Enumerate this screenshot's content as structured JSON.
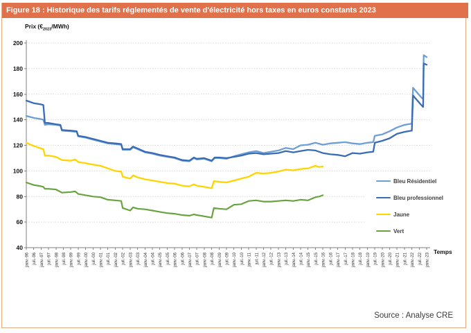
{
  "window": {
    "title": "Figure 18 : Historique des tarifs réglementés de vente d'électricité hors taxes en euros constants 2023"
  },
  "axis_labels": {
    "y_prefix": "Prix (€",
    "y_sub": "2023",
    "y_suffix": "/MWh)",
    "x": "Temps"
  },
  "source": "Source : Analyse CRE",
  "colors": {
    "title_bar": "#E0714B",
    "frame_border": "#E3A983",
    "grid": "#D8D8D8",
    "axis": "#7F7F7F",
    "bleu_residentiel": "#6D9ED6",
    "bleu_professionnel": "#3A6BB5",
    "jaune": "#FFD400",
    "vert": "#69A33F"
  },
  "legend": {
    "items": [
      {
        "label": "Bleu Résidentiel",
        "color": "#6D9ED6"
      },
      {
        "label": "Bleu professionnel",
        "color": "#3A6BB5"
      },
      {
        "label": "Jaune",
        "color": "#FFD400"
      },
      {
        "label": "Vert",
        "color": "#69A33F"
      }
    ]
  },
  "chart_data": {
    "type": "line",
    "title": "Historique des tarifs réglementés de vente d'électricité hors taxes en euros constants 2023",
    "ylabel": "Prix (€2023/MWh)",
    "xlabel": "Temps",
    "ylim": [
      40,
      200
    ],
    "ytick_step": 20,
    "x_range": [
      1996,
      2023
    ],
    "grid": "horizontal-dotted",
    "legend_position": "right-middle",
    "x_tick_labels": [
      "janv.-96",
      "juil.-96",
      "janv.-97",
      "juil.-97",
      "janv.-98",
      "juil.-98",
      "janv.-99",
      "juil.-99",
      "janv.-00",
      "juil.-00",
      "janv.-01",
      "juil.-01",
      "janv.-02",
      "juil.-02",
      "janv.-03",
      "juil.-03",
      "janv.-04",
      "juil.-04",
      "janv.-05",
      "juil.-05",
      "janv.-06",
      "juil.-06",
      "janv.-07",
      "juil.-07",
      "janv.-08",
      "juil.-08",
      "janv.-09",
      "juil.-09",
      "janv.-10",
      "juil.-10",
      "janv.-11",
      "juil.-11",
      "janv.-12",
      "juil.-12",
      "janv.-13",
      "juil.-13",
      "janv.-14",
      "juil.-14",
      "janv.-15",
      "juil.-15",
      "janv.-16",
      "juil.-16",
      "janv.-17",
      "juil.-17",
      "janv.-18",
      "juil.-18",
      "janv.-19",
      "juil.-19",
      "janv.-20",
      "juil.-20",
      "janv.-21",
      "juil.-21",
      "janv.-22",
      "juil.-22",
      "janv.-23"
    ],
    "series": [
      {
        "name": "Bleu Résidentiel",
        "color": "#6D9ED6",
        "width": 2.3,
        "x": [
          1996.0,
          1996.5,
          1997.0,
          1997.15,
          1997.25,
          1997.5,
          1998.0,
          1998.3,
          1998.4,
          1999.0,
          1999.4,
          1999.5,
          2000.0,
          2000.5,
          2001.0,
          2001.5,
          2002.0,
          2002.4,
          2002.5,
          2003.0,
          2003.2,
          2003.5,
          2004.0,
          2004.5,
          2005.0,
          2005.5,
          2006.0,
          2006.5,
          2007.0,
          2007.3,
          2007.5,
          2008.0,
          2008.5,
          2008.7,
          2009.0,
          2009.5,
          2010.0,
          2010.5,
          2011.0,
          2011.5,
          2012.0,
          2012.5,
          2013.0,
          2013.5,
          2014.0,
          2014.5,
          2015.0,
          2015.5,
          2016.0,
          2016.5,
          2017.0,
          2017.5,
          2018.0,
          2018.5,
          2019.0,
          2019.4,
          2019.5,
          2020.0,
          2020.5,
          2021.0,
          2021.5,
          2022.0,
          2022.08,
          2022.3,
          2022.6,
          2022.76,
          2022.8,
          2023.0
        ],
        "y": [
          143,
          141.5,
          140.5,
          140,
          136,
          136.5,
          136,
          135.5,
          131.5,
          131,
          130.5,
          127,
          126,
          124.5,
          123,
          121.5,
          121,
          120.5,
          116.5,
          116.5,
          118.5,
          117,
          114.5,
          113.5,
          112,
          111,
          110,
          108,
          107.5,
          110,
          109,
          109.5,
          107.5,
          110,
          110,
          109.5,
          111.5,
          113,
          114.5,
          115.5,
          114,
          115,
          116,
          118,
          117,
          120,
          120.5,
          122,
          120.5,
          121.5,
          122,
          122.5,
          121.5,
          121,
          122,
          122.5,
          127.5,
          128.5,
          131,
          134,
          136,
          137,
          165,
          162,
          158,
          156,
          190.5,
          189
        ]
      },
      {
        "name": "Bleu professionnel",
        "color": "#3A6BB5",
        "width": 2.3,
        "x": [
          1996.0,
          1996.5,
          1997.0,
          1997.15,
          1997.25,
          1997.5,
          1998.0,
          1998.3,
          1998.4,
          1999.0,
          1999.4,
          1999.5,
          2000.0,
          2000.5,
          2001.0,
          2001.5,
          2002.0,
          2002.4,
          2002.5,
          2003.0,
          2003.2,
          2003.5,
          2004.0,
          2004.5,
          2005.0,
          2005.5,
          2006.0,
          2006.5,
          2007.0,
          2007.3,
          2007.5,
          2008.0,
          2008.5,
          2008.7,
          2009.0,
          2009.5,
          2010.0,
          2010.5,
          2011.0,
          2011.5,
          2012.0,
          2012.5,
          2013.0,
          2013.5,
          2014.0,
          2014.5,
          2015.0,
          2015.5,
          2016.0,
          2016.5,
          2017.0,
          2017.5,
          2018.0,
          2018.5,
          2019.0,
          2019.4,
          2019.5,
          2020.0,
          2020.5,
          2021.0,
          2021.5,
          2022.0,
          2022.08,
          2022.3,
          2022.6,
          2022.76,
          2022.8,
          2023.0
        ],
        "y": [
          155,
          153,
          152,
          151.5,
          137.5,
          137.5,
          136.5,
          136,
          132,
          131.5,
          131,
          127.5,
          126.5,
          125,
          123.5,
          122,
          121.5,
          121,
          117,
          117,
          119,
          117.5,
          115,
          114,
          112.5,
          111.5,
          110.5,
          108.5,
          108,
          110.5,
          109.5,
          110,
          108,
          110.5,
          110.5,
          110,
          111,
          112,
          113.5,
          114,
          113,
          113.5,
          114,
          115.5,
          114.5,
          115.5,
          116.5,
          116,
          114,
          113,
          112.5,
          111.5,
          114,
          113.5,
          114.5,
          115,
          122,
          123.5,
          125.5,
          129,
          130.5,
          131.5,
          159,
          156,
          152,
          150,
          184,
          183
        ]
      },
      {
        "name": "Jaune",
        "color": "#FFD400",
        "width": 2.3,
        "x": [
          1996.0,
          1996.5,
          1997.0,
          1997.15,
          1997.25,
          1997.5,
          1998.0,
          1998.4,
          1999.0,
          1999.3,
          1999.5,
          2000.0,
          2000.5,
          2001.0,
          2001.5,
          2002.0,
          2002.4,
          2002.5,
          2003.0,
          2003.2,
          2003.5,
          2004.0,
          2004.5,
          2005.0,
          2005.5,
          2006.0,
          2006.5,
          2007.0,
          2007.3,
          2007.5,
          2008.0,
          2008.5,
          2008.65,
          2009.0,
          2009.5,
          2010.0,
          2010.5,
          2011.0,
          2011.5,
          2012.0,
          2012.5,
          2013.0,
          2013.5,
          2014.0,
          2014.5,
          2015.0,
          2015.5,
          2015.75,
          2016.0
        ],
        "y": [
          122,
          119.5,
          117.5,
          117,
          112,
          112,
          111,
          108.5,
          108,
          109,
          107,
          106,
          105,
          104,
          102,
          100,
          99.5,
          95.5,
          94,
          96.5,
          95,
          93.5,
          92.5,
          91.5,
          90.5,
          90,
          88.5,
          88,
          89.5,
          88.5,
          87.5,
          86.5,
          92,
          91.5,
          91,
          92.5,
          94,
          95.5,
          98.5,
          98,
          98.5,
          99.5,
          101,
          100.5,
          101.5,
          102,
          104,
          103,
          103.5
        ]
      },
      {
        "name": "Vert",
        "color": "#69A33F",
        "width": 2.2,
        "x": [
          1996.0,
          1996.5,
          1997.0,
          1997.15,
          1997.25,
          1997.5,
          1998.0,
          1998.4,
          1999.0,
          1999.3,
          1999.5,
          2000.0,
          2000.5,
          2001.0,
          2001.5,
          2002.0,
          2002.4,
          2002.5,
          2003.0,
          2003.2,
          2003.5,
          2004.0,
          2004.5,
          2005.0,
          2005.5,
          2006.0,
          2006.5,
          2007.0,
          2007.3,
          2007.5,
          2008.0,
          2008.5,
          2008.65,
          2009.0,
          2009.5,
          2010.0,
          2010.5,
          2011.0,
          2011.5,
          2012.0,
          2012.5,
          2013.0,
          2013.5,
          2014.0,
          2014.5,
          2015.0,
          2015.5,
          2015.75,
          2016.0
        ],
        "y": [
          91,
          89,
          88,
          87.5,
          86,
          86,
          85.5,
          83,
          83.5,
          84,
          82,
          81,
          80,
          79.5,
          77.5,
          77,
          76.5,
          71,
          69,
          71.5,
          70.5,
          70,
          69,
          68,
          67,
          66.5,
          65.5,
          65,
          66,
          65.5,
          64.5,
          63.5,
          71,
          70.5,
          70,
          73.5,
          74,
          76.5,
          77,
          76,
          76,
          76.5,
          77,
          76.5,
          77.5,
          77,
          79.5,
          80,
          81
        ]
      }
    ]
  }
}
